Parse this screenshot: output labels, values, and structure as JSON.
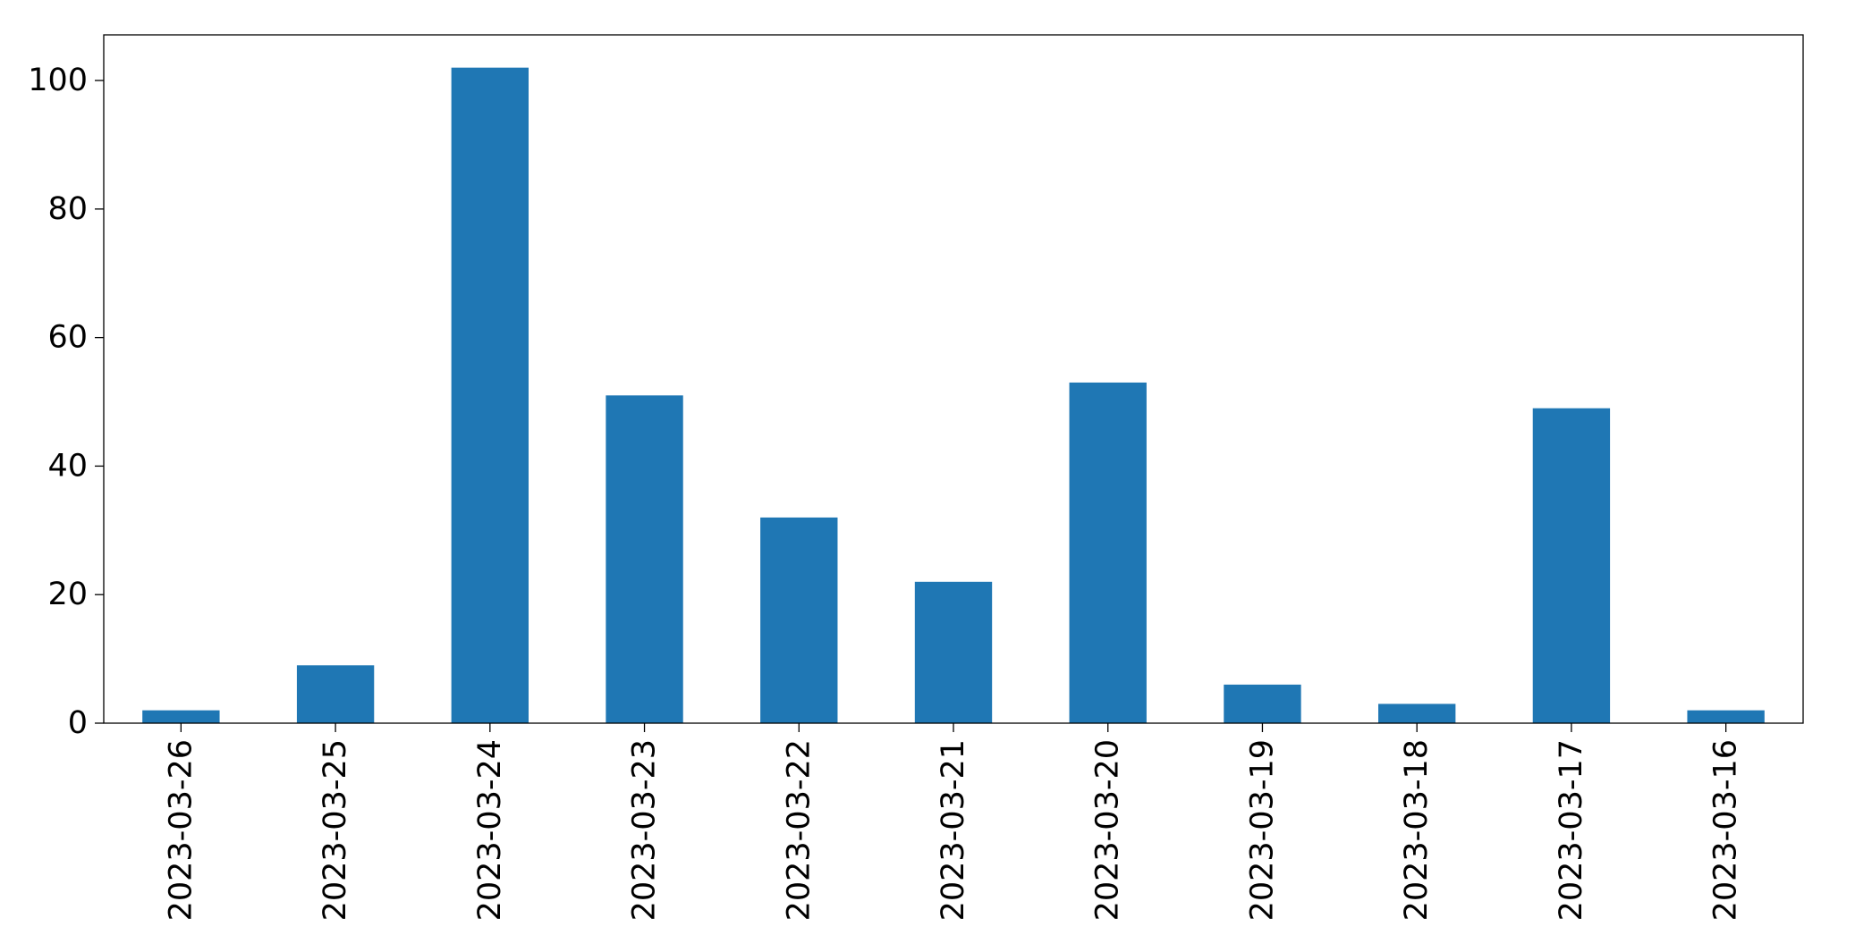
{
  "chart_data": {
    "type": "bar",
    "title": "",
    "xlabel": "",
    "ylabel": "",
    "categories": [
      "2023-03-26",
      "2023-03-25",
      "2023-03-24",
      "2023-03-23",
      "2023-03-22",
      "2023-03-21",
      "2023-03-20",
      "2023-03-19",
      "2023-03-18",
      "2023-03-17",
      "2023-03-16"
    ],
    "values": [
      2,
      9,
      102,
      51,
      32,
      22,
      53,
      6,
      3,
      49,
      2
    ],
    "ylim": [
      0,
      107.1
    ],
    "yticks": [
      0,
      20,
      40,
      60,
      80,
      100
    ],
    "bar_color": "#1f77b4",
    "grid": false,
    "legend": "none"
  }
}
